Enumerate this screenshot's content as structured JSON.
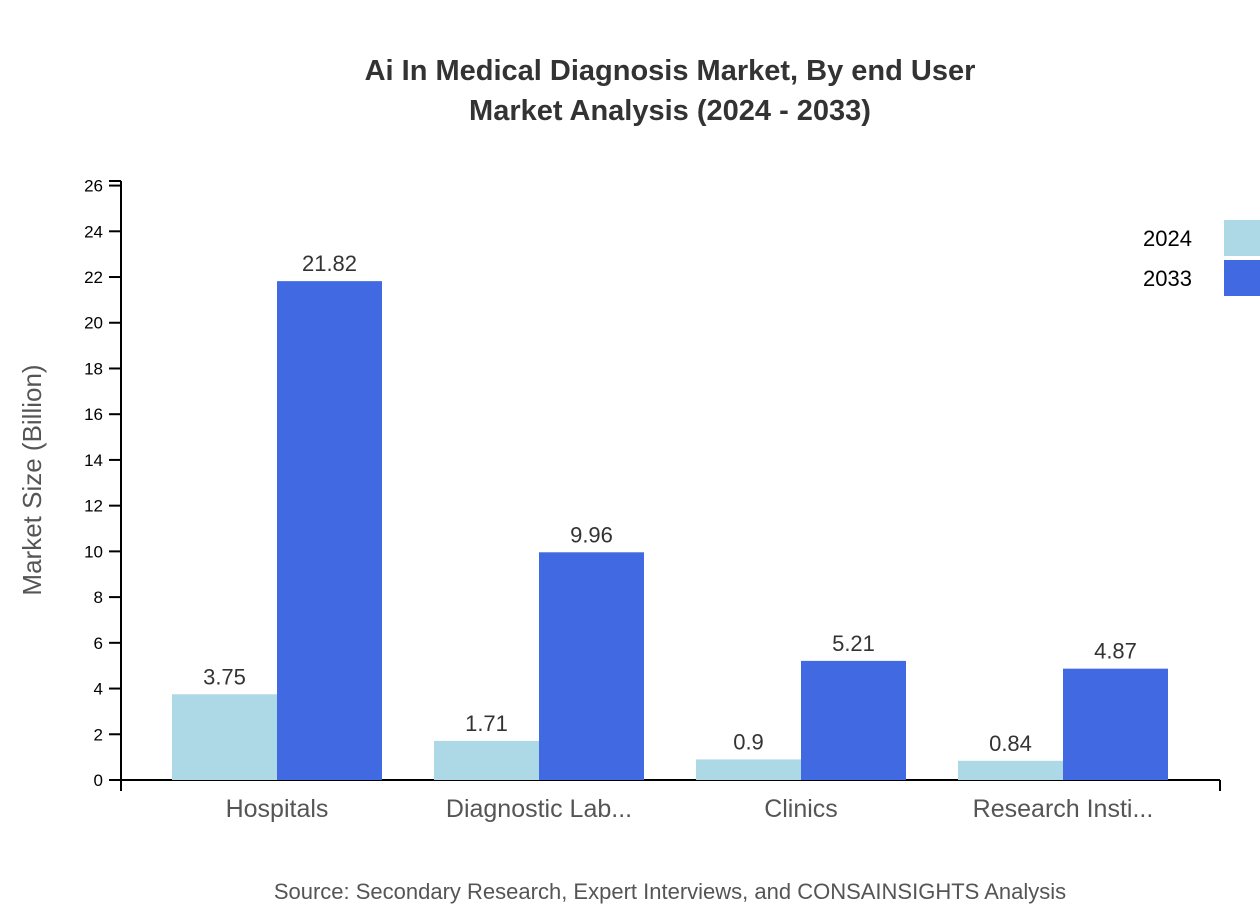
{
  "chart_data": {
    "type": "bar",
    "title": [
      "Ai In Medical Diagnosis Market, By end User",
      "Market Analysis (2024 - 2033)"
    ],
    "xlabel": "",
    "ylabel": "Market Size (Billion)",
    "ylim": [
      0,
      26.2
    ],
    "yticks": [
      0,
      2,
      4,
      6,
      8,
      10,
      12,
      14,
      16,
      18,
      20,
      22,
      24,
      26
    ],
    "categories": [
      "Hospitals",
      "Diagnostic Lab...",
      "Clinics",
      "Research Insti..."
    ],
    "series": [
      {
        "name": "2024",
        "color": "#add8e6",
        "values": [
          3.75,
          1.71,
          0.9,
          0.84
        ]
      },
      {
        "name": "2033",
        "color": "#4169e1",
        "values": [
          21.82,
          9.96,
          5.21,
          4.87
        ]
      }
    ],
    "legend": "top-right",
    "grid": false,
    "source": "Source: Secondary Research, Expert Interviews, and CONSAINSIGHTS Analysis"
  }
}
